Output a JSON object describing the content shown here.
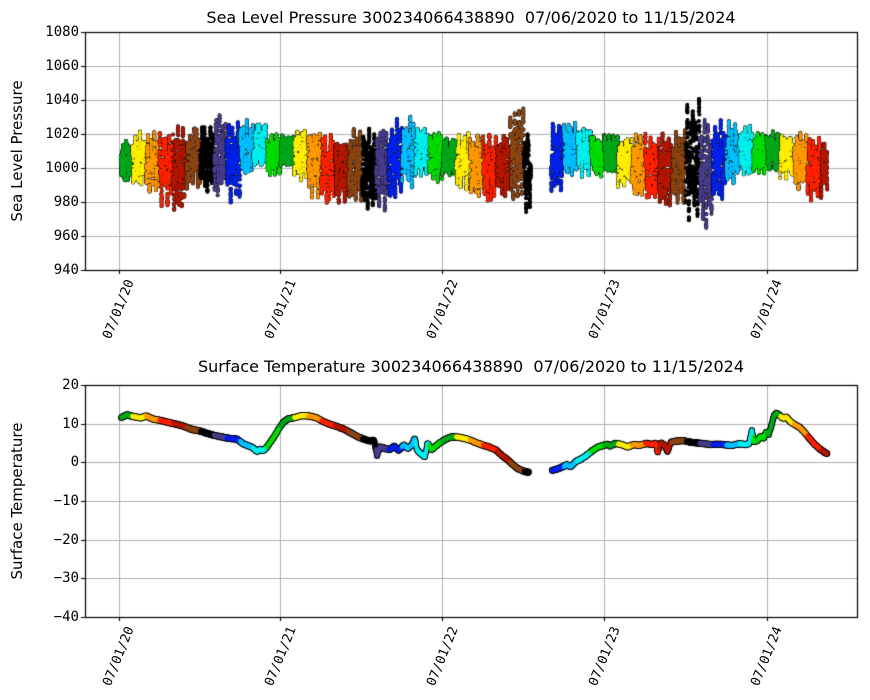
{
  "figure": {
    "background": "#ffffff",
    "grid_color": "#b0b0b0",
    "axis_color": "#000000"
  },
  "chart_data": [
    {
      "type": "scatter",
      "title": "Sea Level Pressure 300234066438890  07/06/2020 to 11/15/2024",
      "ylabel": "Sea Level Pressure",
      "ylim": [
        940,
        1080
      ],
      "yticks": [
        940,
        960,
        980,
        1000,
        1020,
        1040,
        1060,
        1080
      ],
      "xtick_labels": [
        "07/01/20",
        "07/01/21",
        "07/01/22",
        "07/01/23",
        "07/01/24"
      ],
      "date_range": [
        "07/06/2020",
        "11/15/2024"
      ],
      "data_gap": [
        "2023-01-17",
        "2023-03-03"
      ],
      "grid": true,
      "point_color_cycle_by_month": [
        "#000000",
        "#483d8b",
        "#0022ee",
        "#00bfff",
        "#00efef",
        "#00dd00",
        "#00a819",
        "#ffee00",
        "#ff9900",
        "#ff2200",
        "#b51700",
        "#8b4513"
      ],
      "monthly_pressure": [
        {
          "month": "2020-07",
          "center": 1004,
          "amp": 13,
          "start_day": 6
        },
        {
          "month": "2020-08",
          "center": 1005,
          "amp": 16
        },
        {
          "month": "2020-09",
          "center": 1003,
          "amp": 18
        },
        {
          "month": "2020-10",
          "center": 1000,
          "amp": 22
        },
        {
          "month": "2020-11",
          "center": 999,
          "amp": 25
        },
        {
          "month": "2020-12",
          "center": 1006,
          "amp": 19
        },
        {
          "month": "2021-01",
          "center": 1006,
          "amp": 21
        },
        {
          "month": "2021-02",
          "center": 1008,
          "amp": 24
        },
        {
          "month": "2021-03",
          "center": 1004,
          "amp": 23
        },
        {
          "month": "2021-04",
          "center": 1011,
          "amp": 17
        },
        {
          "month": "2021-05",
          "center": 1011,
          "amp": 15
        },
        {
          "month": "2021-06",
          "center": 1008,
          "amp": 13
        },
        {
          "month": "2021-07",
          "center": 1010,
          "amp": 11
        },
        {
          "month": "2021-08",
          "center": 1008,
          "amp": 15
        },
        {
          "month": "2021-09",
          "center": 1003,
          "amp": 20
        },
        {
          "month": "2021-10",
          "center": 1001,
          "amp": 22
        },
        {
          "month": "2021-11",
          "center": 999,
          "amp": 21
        },
        {
          "month": "2021-12",
          "center": 1001,
          "amp": 23
        },
        {
          "month": "2022-01",
          "center": 999,
          "amp": 25
        },
        {
          "month": "2022-02",
          "center": 1001,
          "amp": 25
        },
        {
          "month": "2022-03",
          "center": 1004,
          "amp": 25
        },
        {
          "month": "2022-04",
          "center": 1009,
          "amp": 21
        },
        {
          "month": "2022-05",
          "center": 1010,
          "amp": 17
        },
        {
          "month": "2022-06",
          "center": 1007,
          "amp": 15
        },
        {
          "month": "2022-07",
          "center": 1008,
          "amp": 13
        },
        {
          "month": "2022-08",
          "center": 1004,
          "amp": 17
        },
        {
          "month": "2022-09",
          "center": 1001,
          "amp": 19
        },
        {
          "month": "2022-10",
          "center": 999,
          "amp": 21
        },
        {
          "month": "2022-11",
          "center": 1001,
          "amp": 19
        },
        {
          "month": "2022-12",
          "center": 1007,
          "amp": 28
        },
        {
          "month": "2023-01",
          "center": 998,
          "amp": 24,
          "end_day": 17
        },
        {
          "month": "2023-03",
          "center": 1007,
          "amp": 21,
          "start_day": 3
        },
        {
          "month": "2023-04",
          "center": 1011,
          "amp": 17
        },
        {
          "month": "2023-05",
          "center": 1010,
          "amp": 15
        },
        {
          "month": "2023-06",
          "center": 1007,
          "amp": 13
        },
        {
          "month": "2023-07",
          "center": 1008,
          "amp": 11
        },
        {
          "month": "2023-08",
          "center": 1004,
          "amp": 15
        },
        {
          "month": "2023-09",
          "center": 1001,
          "amp": 19
        },
        {
          "month": "2023-10",
          "center": 999,
          "amp": 21
        },
        {
          "month": "2023-11",
          "center": 999,
          "amp": 22
        },
        {
          "month": "2023-12",
          "center": 1001,
          "amp": 22
        },
        {
          "month": "2024-01",
          "center": 1004,
          "amp": 36
        },
        {
          "month": "2024-02",
          "center": 997,
          "amp": 32
        },
        {
          "month": "2024-03",
          "center": 1004,
          "amp": 24
        },
        {
          "month": "2024-04",
          "center": 1009,
          "amp": 19
        },
        {
          "month": "2024-05",
          "center": 1010,
          "amp": 15
        },
        {
          "month": "2024-06",
          "center": 1009,
          "amp": 13
        },
        {
          "month": "2024-07",
          "center": 1010,
          "amp": 12
        },
        {
          "month": "2024-08",
          "center": 1007,
          "amp": 14
        },
        {
          "month": "2024-09",
          "center": 1004,
          "amp": 17
        },
        {
          "month": "2024-10",
          "center": 1000,
          "amp": 19
        },
        {
          "month": "2024-11",
          "center": 999,
          "amp": 16,
          "end_day": 15
        }
      ]
    },
    {
      "type": "line",
      "title": "Surface Temperature 300234066438890  07/06/2020 to 11/15/2024",
      "ylabel": "Surface Temperature",
      "ylim": [
        -40,
        20
      ],
      "yticks": [
        -40,
        -30,
        -20,
        -10,
        0,
        10,
        20
      ],
      "xtick_labels": [
        "07/01/20",
        "07/01/21",
        "07/01/22",
        "07/01/23",
        "07/01/24"
      ],
      "date_range": [
        "07/06/2020",
        "11/15/2024"
      ],
      "data_gap": [
        "2023-01-13",
        "2023-03-03"
      ],
      "grid": true,
      "waypoints_days_from_2020_07_01": [
        [
          6,
          11.6
        ],
        [
          19,
          12.3
        ],
        [
          35,
          11.8
        ],
        [
          51,
          11.5
        ],
        [
          62,
          12.0
        ],
        [
          78,
          11.2
        ],
        [
          96,
          10.8
        ],
        [
          114,
          10.3
        ],
        [
          132,
          9.8
        ],
        [
          148,
          9.3
        ],
        [
          166,
          8.5
        ],
        [
          184,
          8.1
        ],
        [
          199,
          7.5
        ],
        [
          215,
          7.0
        ],
        [
          231,
          6.6
        ],
        [
          249,
          6.2
        ],
        [
          267,
          6.0
        ],
        [
          281,
          4.8
        ],
        [
          292,
          4.3
        ],
        [
          303,
          3.8
        ],
        [
          312,
          2.8
        ],
        [
          319,
          3.3
        ],
        [
          326,
          3.0
        ],
        [
          335,
          4.0
        ],
        [
          344,
          5.5
        ],
        [
          353,
          7.0
        ],
        [
          362,
          8.8
        ],
        [
          371,
          10.3
        ],
        [
          382,
          11.2
        ],
        [
          398,
          11.6
        ],
        [
          413,
          12.1
        ],
        [
          429,
          12.0
        ],
        [
          445,
          11.6
        ],
        [
          461,
          10.6
        ],
        [
          477,
          9.8
        ],
        [
          492,
          9.3
        ],
        [
          508,
          8.6
        ],
        [
          524,
          7.6
        ],
        [
          540,
          6.6
        ],
        [
          555,
          5.9
        ],
        [
          567,
          5.5
        ],
        [
          576,
          5.8
        ],
        [
          583,
          1.8
        ],
        [
          589,
          4.0
        ],
        [
          601,
          3.6
        ],
        [
          612,
          3.3
        ],
        [
          621,
          4.2
        ],
        [
          632,
          3.1
        ],
        [
          643,
          4.5
        ],
        [
          652,
          3.6
        ],
        [
          661,
          4.4
        ],
        [
          668,
          6.3
        ],
        [
          673,
          3.2
        ],
        [
          682,
          2.2
        ],
        [
          691,
          1.5
        ],
        [
          697,
          5.0
        ],
        [
          706,
          3.2
        ],
        [
          715,
          4.2
        ],
        [
          724,
          5.0
        ],
        [
          738,
          6.0
        ],
        [
          751,
          6.6
        ],
        [
          767,
          6.5
        ],
        [
          783,
          6.1
        ],
        [
          796,
          5.6
        ],
        [
          810,
          4.9
        ],
        [
          823,
          4.4
        ],
        [
          837,
          3.9
        ],
        [
          851,
          3.2
        ],
        [
          864,
          1.8
        ],
        [
          878,
          0.6
        ],
        [
          889,
          -0.6
        ],
        [
          900,
          -1.6
        ],
        [
          914,
          -2.3
        ],
        [
          925,
          -2.6
        ],
        [
          977,
          -2.1
        ],
        [
          988,
          -1.8
        ],
        [
          999,
          -1.3
        ],
        [
          1011,
          -0.6
        ],
        [
          1020,
          -1.1
        ],
        [
          1031,
          0.2
        ],
        [
          1042,
          0.8
        ],
        [
          1053,
          1.6
        ],
        [
          1067,
          2.9
        ],
        [
          1080,
          3.9
        ],
        [
          1094,
          4.4
        ],
        [
          1103,
          4.7
        ],
        [
          1107,
          4.2
        ],
        [
          1121,
          4.9
        ],
        [
          1134,
          4.6
        ],
        [
          1148,
          4.0
        ],
        [
          1162,
          4.6
        ],
        [
          1175,
          4.4
        ],
        [
          1191,
          4.9
        ],
        [
          1204,
          4.6
        ],
        [
          1211,
          5.0
        ],
        [
          1216,
          2.6
        ],
        [
          1222,
          5.1
        ],
        [
          1231,
          4.4
        ],
        [
          1238,
          2.8
        ],
        [
          1245,
          5.2
        ],
        [
          1258,
          5.5
        ],
        [
          1274,
          5.6
        ],
        [
          1290,
          5.2
        ],
        [
          1306,
          5.0
        ],
        [
          1321,
          4.8
        ],
        [
          1337,
          4.6
        ],
        [
          1353,
          4.7
        ],
        [
          1369,
          4.5
        ],
        [
          1384,
          4.4
        ],
        [
          1400,
          4.8
        ],
        [
          1416,
          4.6
        ],
        [
          1422,
          5.0
        ],
        [
          1428,
          8.2
        ],
        [
          1433,
          5.4
        ],
        [
          1441,
          5.7
        ],
        [
          1448,
          6.8
        ],
        [
          1454,
          6.1
        ],
        [
          1460,
          7.8
        ],
        [
          1466,
          7.2
        ],
        [
          1472,
          9.5
        ],
        [
          1478,
          12.1
        ],
        [
          1484,
          12.7
        ],
        [
          1490,
          12.2
        ],
        [
          1498,
          11.4
        ],
        [
          1506,
          11.7
        ],
        [
          1514,
          10.6
        ],
        [
          1524,
          9.8
        ],
        [
          1534,
          9.2
        ],
        [
          1544,
          8.1
        ],
        [
          1556,
          6.4
        ],
        [
          1570,
          4.6
        ],
        [
          1582,
          3.4
        ],
        [
          1592,
          2.6
        ],
        [
          1598,
          2.2
        ]
      ]
    }
  ]
}
